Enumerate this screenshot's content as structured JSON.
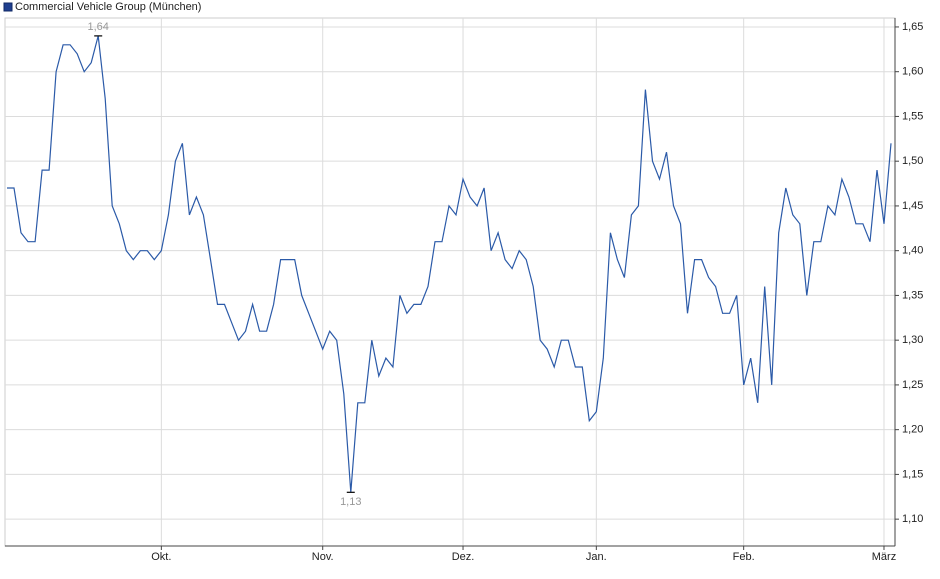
{
  "chart_data": {
    "type": "line",
    "categories": [
      null,
      null,
      null,
      null,
      null,
      null,
      null,
      null,
      null,
      null,
      null,
      null,
      null,
      null,
      null,
      null,
      null,
      null,
      null,
      null,
      null,
      null,
      "Okt.",
      null,
      null,
      null,
      null,
      null,
      null,
      null,
      null,
      null,
      null,
      null,
      null,
      null,
      null,
      null,
      null,
      null,
      null,
      null,
      null,
      null,
      null,
      "Nov.",
      null,
      null,
      null,
      null,
      null,
      null,
      null,
      null,
      null,
      null,
      null,
      null,
      null,
      null,
      null,
      null,
      null,
      null,
      null,
      "Dez.",
      null,
      null,
      null,
      null,
      null,
      null,
      null,
      null,
      null,
      null,
      null,
      null,
      null,
      null,
      null,
      null,
      null,
      null,
      "Jan.",
      null,
      null,
      null,
      null,
      null,
      null,
      null,
      null,
      null,
      null,
      null,
      null,
      null,
      null,
      null,
      null,
      null,
      null,
      null,
      null,
      "Feb.",
      null,
      null,
      null,
      null,
      null,
      null,
      null,
      null,
      null,
      null,
      null,
      null,
      null,
      null,
      null,
      null,
      null,
      null,
      null,
      "März",
      null
    ],
    "series": [
      {
        "name": "Commercial Vehicle Group (München)",
        "color": "#2b5aa8",
        "values": [
          1.47,
          1.47,
          1.42,
          1.41,
          1.41,
          1.49,
          1.49,
          1.6,
          1.63,
          1.63,
          1.62,
          1.6,
          1.61,
          1.64,
          1.57,
          1.45,
          1.43,
          1.4,
          1.39,
          1.4,
          1.4,
          1.39,
          1.4,
          1.44,
          1.5,
          1.52,
          1.44,
          1.46,
          1.44,
          1.39,
          1.34,
          1.34,
          1.32,
          1.3,
          1.31,
          1.34,
          1.31,
          1.31,
          1.34,
          1.39,
          1.39,
          1.39,
          1.35,
          1.33,
          1.31,
          1.29,
          1.31,
          1.3,
          1.24,
          1.13,
          1.23,
          1.23,
          1.3,
          1.26,
          1.28,
          1.27,
          1.35,
          1.33,
          1.34,
          1.34,
          1.36,
          1.41,
          1.41,
          1.45,
          1.44,
          1.48,
          1.46,
          1.45,
          1.47,
          1.4,
          1.42,
          1.39,
          1.38,
          1.4,
          1.39,
          1.36,
          1.3,
          1.29,
          1.27,
          1.3,
          1.3,
          1.27,
          1.27,
          1.21,
          1.22,
          1.28,
          1.42,
          1.39,
          1.37,
          1.44,
          1.45,
          1.58,
          1.5,
          1.48,
          1.51,
          1.45,
          1.43,
          1.33,
          1.39,
          1.39,
          1.37,
          1.36,
          1.33,
          1.33,
          1.35,
          1.25,
          1.28,
          1.23,
          1.36,
          1.25,
          1.42,
          1.47,
          1.44,
          1.43,
          1.35,
          1.41,
          1.41,
          1.45,
          1.44,
          1.48,
          1.46,
          1.43,
          1.43,
          1.41,
          1.49,
          1.43,
          1.52
        ],
        "value_labels": [
          null,
          null,
          null,
          null,
          null,
          null,
          null,
          null,
          null,
          null,
          null,
          null,
          null,
          "1,64",
          null,
          null,
          null,
          null,
          null,
          null,
          null,
          null,
          null,
          null,
          null,
          null,
          null,
          null,
          null,
          null,
          null,
          null,
          null,
          null,
          null,
          null,
          null,
          null,
          null,
          null,
          null,
          null,
          null,
          null,
          null,
          null,
          null,
          null,
          null,
          "1,13",
          null,
          null,
          null,
          null,
          null,
          null,
          null,
          null,
          null,
          null,
          null,
          null,
          null,
          null,
          null,
          null,
          null,
          null,
          null,
          null,
          null,
          null,
          null,
          null,
          null,
          null,
          null,
          null,
          null,
          null,
          null,
          null,
          null,
          null,
          null,
          null,
          null,
          null,
          null,
          null,
          null,
          null,
          null,
          null,
          null,
          null,
          null,
          null,
          null,
          null,
          null,
          null,
          null,
          null,
          null,
          null,
          null,
          null,
          null,
          null,
          null,
          null,
          null,
          null,
          null,
          null,
          null,
          null,
          null,
          null,
          null,
          null,
          null,
          null,
          null,
          null,
          null
        ]
      }
    ],
    "ylim": [
      1.07,
      1.66
    ],
    "yticks": [
      {
        "value": 1.1,
        "label": "1,10"
      },
      {
        "value": 1.15,
        "label": "1,15"
      },
      {
        "value": 1.2,
        "label": "1,20"
      },
      {
        "value": 1.25,
        "label": "1,25"
      },
      {
        "value": 1.3,
        "label": "1,30"
      },
      {
        "value": 1.35,
        "label": "1,35"
      },
      {
        "value": 1.4,
        "label": "1,40"
      },
      {
        "value": 1.45,
        "label": "1,45"
      },
      {
        "value": 1.5,
        "label": "1,50"
      },
      {
        "value": 1.55,
        "label": "1,55"
      },
      {
        "value": 1.6,
        "label": "1,60"
      },
      {
        "value": 1.65,
        "label": "1,65"
      }
    ],
    "grid": true,
    "legend": "top-left"
  }
}
